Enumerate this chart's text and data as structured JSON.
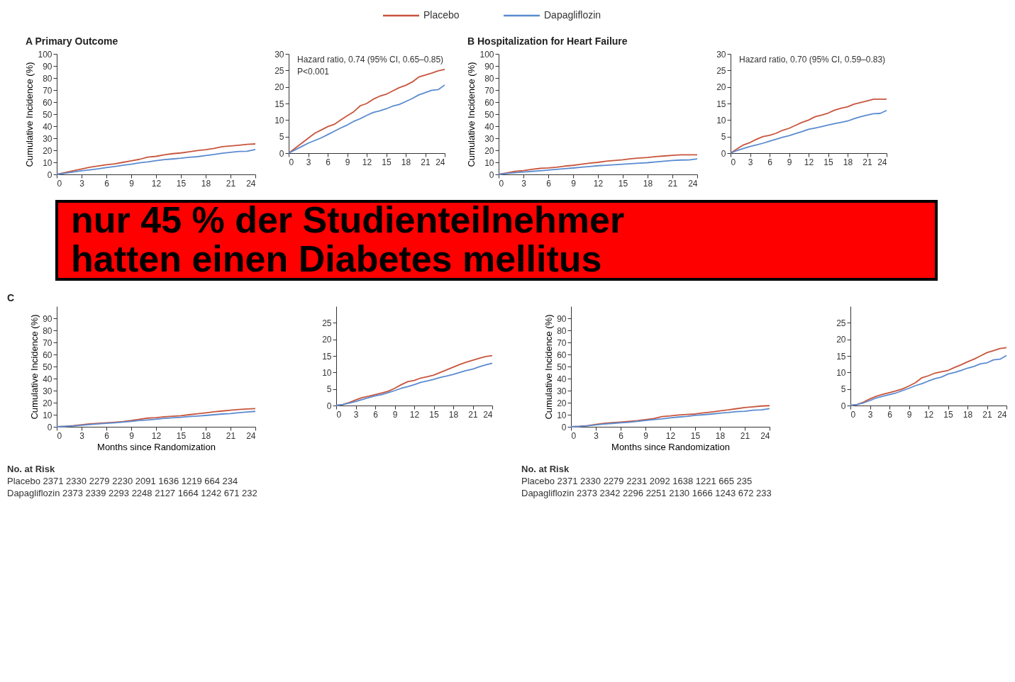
{
  "chart_data": [
    {
      "type": "line",
      "title": "A  Primary Outcome",
      "ylabel": "Cumulative Incidence (%)",
      "legend": "top",
      "xlim": [
        0,
        24
      ],
      "xticks": [
        0,
        3,
        6,
        9,
        12,
        15,
        18,
        21,
        24
      ],
      "ylim": [
        0,
        100
      ],
      "yticks": [
        0,
        10,
        20,
        30,
        40,
        50,
        60,
        70,
        80,
        90,
        100
      ],
      "x": [
        0,
        1,
        2,
        3,
        4,
        5,
        6,
        7,
        8,
        9,
        10,
        11,
        12,
        13,
        14,
        15,
        16,
        17,
        18,
        19,
        20,
        21,
        22,
        23,
        24
      ],
      "series": [
        {
          "name": "Placebo",
          "color": "#c8553d",
          "values": [
            0,
            1.5,
            3.0,
            4.5,
            6.0,
            7.0,
            8.0,
            8.7,
            10.0,
            11.3,
            12.5,
            14.3,
            15.0,
            16.3,
            17.2,
            17.8,
            18.8,
            19.8,
            20.5,
            21.5,
            23.0,
            23.6,
            24.2,
            24.9,
            25.3
          ]
        },
        {
          "name": "Dapagliflozin",
          "color": "#5b8bd0",
          "values": [
            0,
            1.0,
            2.0,
            3.0,
            3.8,
            4.6,
            5.6,
            6.6,
            7.6,
            8.5,
            9.6,
            10.4,
            11.4,
            12.3,
            12.8,
            13.4,
            14.2,
            14.7,
            15.6,
            16.5,
            17.6,
            18.3,
            19.0,
            19.2,
            20.6
          ]
        }
      ]
    },
    {
      "type": "line",
      "annotations": [
        "Hazard ratio, 0.74 (95% CI, 0.65–0.85)",
        "P<0.001"
      ],
      "xlim": [
        0,
        24
      ],
      "xticks": [
        0,
        3,
        6,
        9,
        12,
        15,
        18,
        21,
        24
      ],
      "ylim": [
        0,
        30
      ],
      "yticks": [
        0,
        5,
        10,
        15,
        20,
        25,
        30
      ],
      "x": [
        0,
        1,
        2,
        3,
        4,
        5,
        6,
        7,
        8,
        9,
        10,
        11,
        12,
        13,
        14,
        15,
        16,
        17,
        18,
        19,
        20,
        21,
        22,
        23,
        24
      ],
      "series": [
        {
          "name": "Placebo",
          "color": "#c8553d",
          "values": [
            0,
            1.5,
            3.0,
            4.5,
            6.0,
            7.0,
            8.0,
            8.7,
            10.0,
            11.3,
            12.5,
            14.3,
            15.0,
            16.3,
            17.2,
            17.8,
            18.8,
            19.8,
            20.5,
            21.5,
            23.0,
            23.6,
            24.2,
            24.9,
            25.3
          ]
        },
        {
          "name": "Dapagliflozin",
          "color": "#5b8bd0",
          "values": [
            0,
            1.0,
            2.0,
            3.0,
            3.8,
            4.6,
            5.6,
            6.6,
            7.6,
            8.5,
            9.6,
            10.4,
            11.4,
            12.3,
            12.8,
            13.4,
            14.2,
            14.7,
            15.6,
            16.5,
            17.6,
            18.3,
            19.0,
            19.2,
            20.6
          ]
        }
      ]
    },
    {
      "type": "line",
      "title": "B  Hospitalization for Heart Failure",
      "ylabel": "Cumulative Incidence (%)",
      "xlim": [
        0,
        24
      ],
      "xticks": [
        0,
        3,
        6,
        9,
        12,
        15,
        18,
        21,
        24
      ],
      "ylim": [
        0,
        100
      ],
      "yticks": [
        0,
        10,
        20,
        30,
        40,
        50,
        60,
        70,
        80,
        90,
        100
      ],
      "x": [
        0,
        1,
        2,
        3,
        4,
        5,
        6,
        7,
        8,
        9,
        10,
        11,
        12,
        13,
        14,
        15,
        16,
        17,
        18,
        19,
        20,
        21,
        22,
        23,
        24
      ],
      "series": [
        {
          "name": "Placebo",
          "color": "#c8553d",
          "values": [
            0,
            1.3,
            2.5,
            3.2,
            4.2,
            5.0,
            5.4,
            6.0,
            6.9,
            7.5,
            8.4,
            9.3,
            10.0,
            11.0,
            11.5,
            12.1,
            13.0,
            13.6,
            14.0,
            14.8,
            15.3,
            15.8,
            16.3,
            16.3,
            16.3
          ]
        },
        {
          "name": "Dapagliflozin",
          "color": "#5b8bd0",
          "values": [
            0,
            0.8,
            1.4,
            2.0,
            2.5,
            3.0,
            3.6,
            4.2,
            4.8,
            5.3,
            5.9,
            6.5,
            7.2,
            7.6,
            8.0,
            8.5,
            8.9,
            9.3,
            9.7,
            10.4,
            11.0,
            11.5,
            11.9,
            12.0,
            12.9
          ]
        }
      ]
    },
    {
      "type": "line",
      "annotations": [
        "Hazard ratio, 0.70 (95% CI, 0.59–0.83)"
      ],
      "xlim": [
        0,
        24
      ],
      "xticks": [
        0,
        3,
        6,
        9,
        12,
        15,
        18,
        21,
        24
      ],
      "ylim": [
        0,
        30
      ],
      "yticks": [
        0,
        5,
        10,
        15,
        20,
        25,
        30
      ],
      "x": [
        0,
        1,
        2,
        3,
        4,
        5,
        6,
        7,
        8,
        9,
        10,
        11,
        12,
        13,
        14,
        15,
        16,
        17,
        18,
        19,
        20,
        21,
        22,
        23,
        24
      ],
      "series": [
        {
          "name": "Placebo",
          "color": "#c8553d",
          "values": [
            0,
            1.3,
            2.5,
            3.2,
            4.2,
            5.0,
            5.4,
            6.0,
            6.9,
            7.5,
            8.4,
            9.3,
            10.0,
            11.0,
            11.5,
            12.1,
            13.0,
            13.6,
            14.0,
            14.8,
            15.3,
            15.8,
            16.3,
            16.3,
            16.3
          ]
        },
        {
          "name": "Dapagliflozin",
          "color": "#5b8bd0",
          "values": [
            0,
            0.8,
            1.4,
            2.0,
            2.5,
            3.0,
            3.6,
            4.2,
            4.8,
            5.3,
            5.9,
            6.5,
            7.2,
            7.6,
            8.0,
            8.5,
            8.9,
            9.3,
            9.7,
            10.4,
            11.0,
            11.5,
            11.9,
            12.0,
            12.9
          ]
        }
      ]
    },
    {
      "type": "other",
      "annotations": [
        "nur 45 % der Studienteilnehmer",
        "hatten einen Diabetes mellitus"
      ]
    },
    {
      "type": "line",
      "title": "C",
      "xlabel": "Months since Randomization",
      "ylabel": "Cumulative Incidence (%)",
      "annotations": [
        "No. at Risk",
        "Placebo   2371   2330   2279   2230   2091   1636   1219   664   234",
        "Dapagliflozin   2373   2339   2293   2248   2127   1664   1242   671   232"
      ],
      "xlim": [
        0,
        24
      ],
      "xticks": [
        0,
        3,
        6,
        9,
        12,
        15,
        18,
        21,
        24
      ],
      "ylim": [
        0,
        100
      ],
      "yticks": [
        0,
        10,
        20,
        30,
        40,
        50,
        60,
        70,
        80,
        90
      ],
      "x": [
        0,
        1,
        2,
        3,
        4,
        5,
        6,
        7,
        8,
        9,
        10,
        11,
        12,
        13,
        14,
        15,
        16,
        17,
        18,
        19,
        20,
        21,
        22,
        23,
        24
      ],
      "series": [
        {
          "name": "Placebo",
          "color": "#c8553d",
          "values": [
            0,
            0.3,
            0.9,
            1.7,
            2.4,
            2.8,
            3.3,
            3.8,
            4.3,
            5.2,
            6.3,
            7.2,
            7.6,
            8.3,
            8.7,
            9.2,
            10.0,
            10.8,
            11.6,
            12.4,
            13.1,
            13.7,
            14.3,
            14.8,
            15.1
          ]
        },
        {
          "name": "Dapagliflozin",
          "color": "#5b8bd0",
          "values": [
            0,
            0.3,
            0.7,
            1.2,
            1.8,
            2.4,
            2.9,
            3.3,
            3.9,
            4.5,
            5.2,
            5.7,
            6.3,
            7.0,
            7.4,
            7.9,
            8.5,
            8.9,
            9.4,
            10.0,
            10.6,
            11.0,
            11.7,
            12.3,
            12.8
          ]
        }
      ]
    },
    {
      "type": "line",
      "xlim": [
        0,
        24
      ],
      "xticks": [
        0,
        3,
        6,
        9,
        12,
        15,
        18,
        21,
        24
      ],
      "ylim": [
        0,
        30
      ],
      "yticks": [
        0,
        5,
        10,
        15,
        20,
        25
      ],
      "x": [
        0,
        1,
        2,
        3,
        4,
        5,
        6,
        7,
        8,
        9,
        10,
        11,
        12,
        13,
        14,
        15,
        16,
        17,
        18,
        19,
        20,
        21,
        22,
        23,
        24
      ],
      "series": [
        {
          "name": "Placebo",
          "color": "#c8553d",
          "values": [
            0,
            0.3,
            0.9,
            1.7,
            2.4,
            2.8,
            3.3,
            3.8,
            4.3,
            5.2,
            6.3,
            7.2,
            7.6,
            8.3,
            8.7,
            9.2,
            10.0,
            10.8,
            11.6,
            12.4,
            13.1,
            13.7,
            14.3,
            14.8,
            15.1
          ]
        },
        {
          "name": "Dapagliflozin",
          "color": "#5b8bd0",
          "values": [
            0,
            0.3,
            0.7,
            1.2,
            1.8,
            2.4,
            2.9,
            3.3,
            3.9,
            4.5,
            5.2,
            5.7,
            6.3,
            7.0,
            7.4,
            7.9,
            8.5,
            8.9,
            9.4,
            10.0,
            10.6,
            11.0,
            11.7,
            12.3,
            12.8
          ]
        }
      ]
    },
    {
      "type": "line",
      "xlabel": "Months since Randomization",
      "ylabel": "Cumulative Incidence (%)",
      "annotations": [
        "No. at Risk",
        "Placebo   2371   2330   2279   2231   2092   1638   1221   665   235",
        "Dapagliflozin   2373   2342   2296   2251   2130   1666   1243   672   233"
      ],
      "xlim": [
        0,
        24
      ],
      "xticks": [
        0,
        3,
        6,
        9,
        12,
        15,
        18,
        21,
        24
      ],
      "ylim": [
        0,
        100
      ],
      "yticks": [
        0,
        10,
        20,
        30,
        40,
        50,
        60,
        70,
        80,
        90
      ],
      "x": [
        0,
        1,
        2,
        3,
        4,
        5,
        6,
        7,
        8,
        9,
        10,
        11,
        12,
        13,
        14,
        15,
        16,
        17,
        18,
        19,
        20,
        21,
        22,
        23,
        24
      ],
      "series": [
        {
          "name": "Placebo",
          "color": "#c8553d",
          "values": [
            0,
            0.3,
            1.0,
            2.0,
            2.8,
            3.4,
            3.9,
            4.4,
            5.0,
            5.9,
            6.9,
            8.4,
            9.0,
            9.8,
            10.2,
            10.6,
            11.5,
            12.3,
            13.2,
            14.0,
            15.0,
            16.0,
            16.6,
            17.2,
            17.5
          ]
        },
        {
          "name": "Dapagliflozin",
          "color": "#5b8bd0",
          "values": [
            0,
            0.3,
            0.8,
            1.5,
            2.3,
            2.8,
            3.3,
            3.8,
            4.5,
            5.2,
            6.0,
            6.6,
            7.4,
            8.1,
            8.6,
            9.5,
            10.0,
            10.6,
            11.3,
            11.8,
            12.6,
            12.9,
            13.8,
            14.0,
            15.1
          ]
        }
      ]
    },
    {
      "type": "line",
      "xlim": [
        0,
        24
      ],
      "xticks": [
        0,
        3,
        6,
        9,
        12,
        15,
        18,
        21,
        24
      ],
      "ylim": [
        0,
        30
      ],
      "yticks": [
        0,
        5,
        10,
        15,
        20,
        25
      ],
      "x": [
        0,
        1,
        2,
        3,
        4,
        5,
        6,
        7,
        8,
        9,
        10,
        11,
        12,
        13,
        14,
        15,
        16,
        17,
        18,
        19,
        20,
        21,
        22,
        23,
        24
      ],
      "series": [
        {
          "name": "Placebo",
          "color": "#c8553d",
          "values": [
            0,
            0.3,
            1.0,
            2.0,
            2.8,
            3.4,
            3.9,
            4.4,
            5.0,
            5.9,
            6.9,
            8.4,
            9.0,
            9.8,
            10.2,
            10.6,
            11.5,
            12.3,
            13.2,
            14.0,
            15.0,
            16.0,
            16.6,
            17.2,
            17.5
          ]
        },
        {
          "name": "Dapagliflozin",
          "color": "#5b8bd0",
          "values": [
            0,
            0.3,
            0.8,
            1.5,
            2.3,
            2.8,
            3.3,
            3.8,
            4.5,
            5.2,
            6.0,
            6.6,
            7.4,
            8.1,
            8.6,
            9.5,
            10.0,
            10.6,
            11.3,
            11.8,
            12.6,
            12.9,
            13.8,
            14.0,
            15.1
          ]
        }
      ]
    }
  ]
}
